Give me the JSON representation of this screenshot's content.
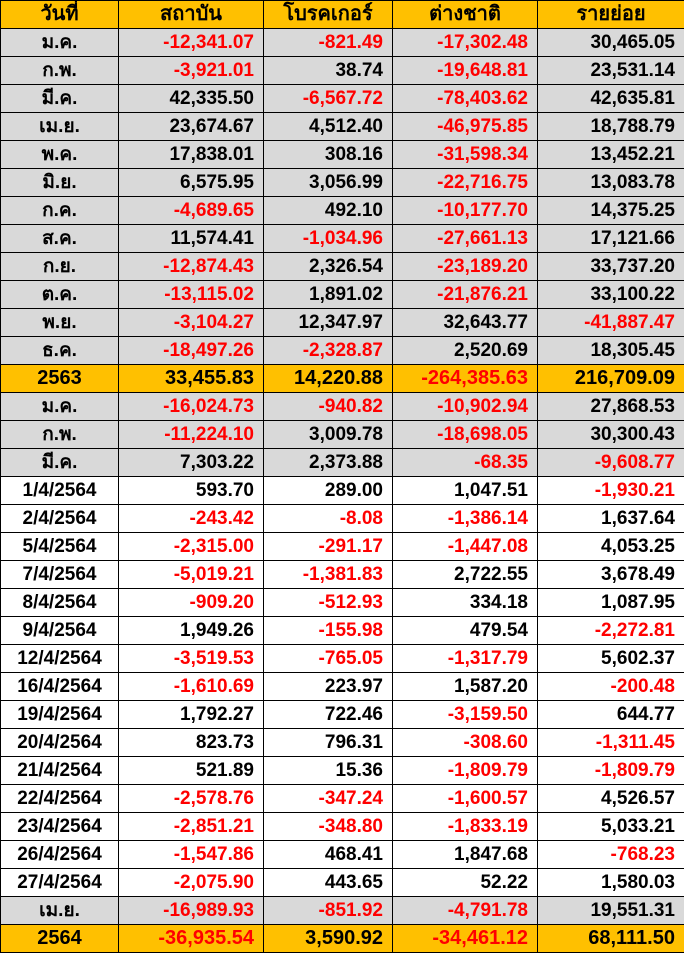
{
  "chart_data": {
    "type": "table",
    "columns": [
      "วันที่",
      "สถาบัน",
      "โบรคเกอร์",
      "ต่างชาติ",
      "รายย่อย"
    ],
    "rows": [
      {
        "label": "ม.ค.",
        "kind": "month",
        "values": [
          -12341.07,
          -821.49,
          -17302.48,
          30465.05
        ]
      },
      {
        "label": "ก.พ.",
        "kind": "month",
        "values": [
          -3921.01,
          38.74,
          -19648.81,
          23531.14
        ]
      },
      {
        "label": "มี.ค.",
        "kind": "month",
        "values": [
          42335.5,
          -6567.72,
          -78403.62,
          42635.81
        ]
      },
      {
        "label": "เม.ย.",
        "kind": "month",
        "values": [
          23674.67,
          4512.4,
          -46975.85,
          18788.79
        ]
      },
      {
        "label": "พ.ค.",
        "kind": "month",
        "values": [
          17838.01,
          308.16,
          -31598.34,
          13452.21
        ]
      },
      {
        "label": "มิ.ย.",
        "kind": "month",
        "values": [
          6575.95,
          3056.99,
          -22716.75,
          13083.78
        ]
      },
      {
        "label": "ก.ค.",
        "kind": "month",
        "values": [
          -4689.65,
          492.1,
          -10177.7,
          14375.25
        ]
      },
      {
        "label": "ส.ค.",
        "kind": "month",
        "values": [
          11574.41,
          -1034.96,
          -27661.13,
          17121.66
        ]
      },
      {
        "label": "ก.ย.",
        "kind": "month",
        "values": [
          -12874.43,
          2326.54,
          -23189.2,
          33737.2
        ]
      },
      {
        "label": "ต.ค.",
        "kind": "month",
        "values": [
          -13115.02,
          1891.02,
          -21876.21,
          33100.22
        ]
      },
      {
        "label": "พ.ย.",
        "kind": "month",
        "values": [
          -3104.27,
          12347.97,
          32643.77,
          -41887.47
        ]
      },
      {
        "label": "ธ.ค.",
        "kind": "month",
        "values": [
          -18497.26,
          -2328.87,
          2520.69,
          18305.45
        ]
      },
      {
        "label": "2563",
        "kind": "total",
        "values": [
          33455.83,
          14220.88,
          -264385.63,
          216709.09
        ]
      },
      {
        "label": "ม.ค.",
        "kind": "month",
        "values": [
          -16024.73,
          -940.82,
          -10902.94,
          27868.53
        ]
      },
      {
        "label": "ก.พ.",
        "kind": "month",
        "values": [
          -11224.1,
          3009.78,
          -18698.05,
          30300.43
        ]
      },
      {
        "label": "มี.ค.",
        "kind": "month",
        "values": [
          7303.22,
          2373.88,
          -68.35,
          -9608.77
        ]
      },
      {
        "label": "1/4/2564",
        "kind": "date",
        "values": [
          593.7,
          289.0,
          1047.51,
          -1930.21
        ]
      },
      {
        "label": "2/4/2564",
        "kind": "date",
        "values": [
          -243.42,
          -8.08,
          -1386.14,
          1637.64
        ]
      },
      {
        "label": "5/4/2564",
        "kind": "date",
        "values": [
          -2315.0,
          -291.17,
          -1447.08,
          4053.25
        ]
      },
      {
        "label": "7/4/2564",
        "kind": "date",
        "values": [
          -5019.21,
          -1381.83,
          2722.55,
          3678.49
        ]
      },
      {
        "label": "8/4/2564",
        "kind": "date",
        "values": [
          -909.2,
          -512.93,
          334.18,
          1087.95
        ]
      },
      {
        "label": "9/4/2564",
        "kind": "date",
        "values": [
          1949.26,
          -155.98,
          479.54,
          -2272.81
        ]
      },
      {
        "label": "12/4/2564",
        "kind": "date",
        "values": [
          -3519.53,
          -765.05,
          -1317.79,
          5602.37
        ]
      },
      {
        "label": "16/4/2564",
        "kind": "date",
        "values": [
          -1610.69,
          223.97,
          1587.2,
          -200.48
        ]
      },
      {
        "label": "19/4/2564",
        "kind": "date",
        "values": [
          1792.27,
          722.46,
          -3159.5,
          644.77
        ]
      },
      {
        "label": "20/4/2564",
        "kind": "date",
        "values": [
          823.73,
          796.31,
          -308.6,
          -1311.45
        ]
      },
      {
        "label": "21/4/2564",
        "kind": "date",
        "values": [
          521.89,
          15.36,
          -1809.79,
          -1809.79
        ]
      },
      {
        "label": "22/4/2564",
        "kind": "date",
        "values": [
          -2578.76,
          -347.24,
          -1600.57,
          4526.57
        ]
      },
      {
        "label": "23/4/2564",
        "kind": "date",
        "values": [
          -2851.21,
          -348.8,
          -1833.19,
          5033.21
        ]
      },
      {
        "label": "26/4/2564",
        "kind": "date",
        "values": [
          -1547.86,
          468.41,
          1847.68,
          -768.23
        ]
      },
      {
        "label": "27/4/2564",
        "kind": "date",
        "values": [
          -2075.9,
          443.65,
          52.22,
          1580.03
        ]
      },
      {
        "label": "เม.ย.",
        "kind": "month",
        "values": [
          -16989.93,
          -851.92,
          -4791.78,
          19551.31
        ]
      },
      {
        "label": "2564",
        "kind": "total",
        "values": [
          -36935.54,
          3590.92,
          -34461.12,
          68111.5
        ]
      }
    ]
  },
  "colors": {
    "header_bg": "#ffc000",
    "total_row_bg": "#ffc000",
    "month_row_bg": "#d9d9d9",
    "date_row_bg": "#ffffff",
    "negative_text": "#ff0000",
    "positive_text": "#000000",
    "border": "#000000"
  }
}
